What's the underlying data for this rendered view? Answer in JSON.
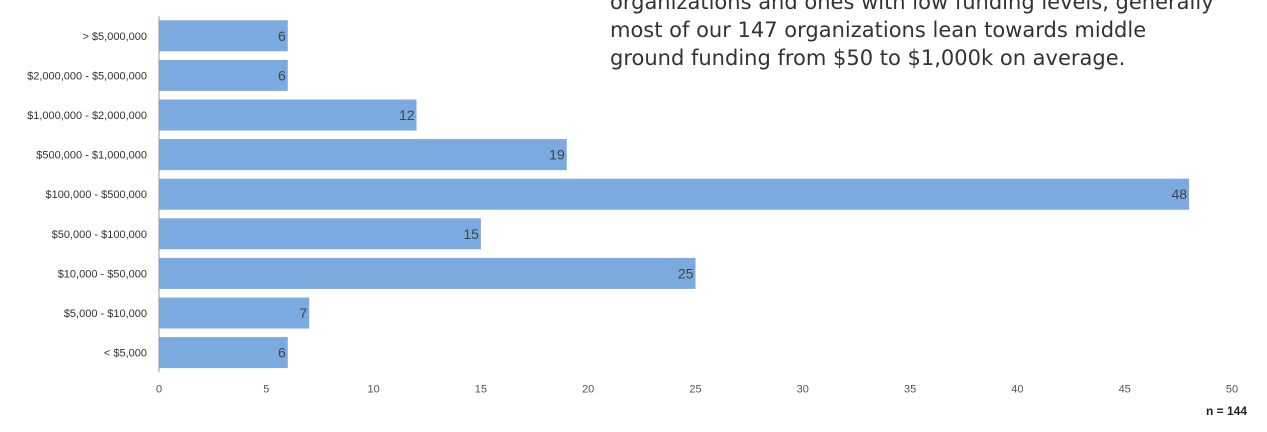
{
  "chart_data": {
    "type": "bar",
    "orientation": "horizontal",
    "categories": [
      "> $5,000,000",
      "$2,000,000 - $5,000,000",
      "$1,000,000 - $2,000,000",
      "$500,000 - $1,000,000",
      "$100,000 - $500,000",
      "$50,000 - $100,000",
      "$10,000 - $50,000",
      "$5,000 - $10,000",
      "< $5,000"
    ],
    "values": [
      6,
      6,
      12,
      19,
      48,
      15,
      25,
      7,
      6
    ],
    "xlim": [
      0,
      50
    ],
    "xticks": [
      0,
      5,
      10,
      15,
      20,
      25,
      30,
      35,
      40,
      45,
      50
    ],
    "grid": false,
    "bar_color": "#7aaadf",
    "data_labels": true
  },
  "annotation_lines": [
    "organizations and ones with low funding levels, generally",
    "most of our 147 organizations lean towards middle",
    "ground funding from $50 to $1,000k on average."
  ],
  "footnote": "n = 144"
}
